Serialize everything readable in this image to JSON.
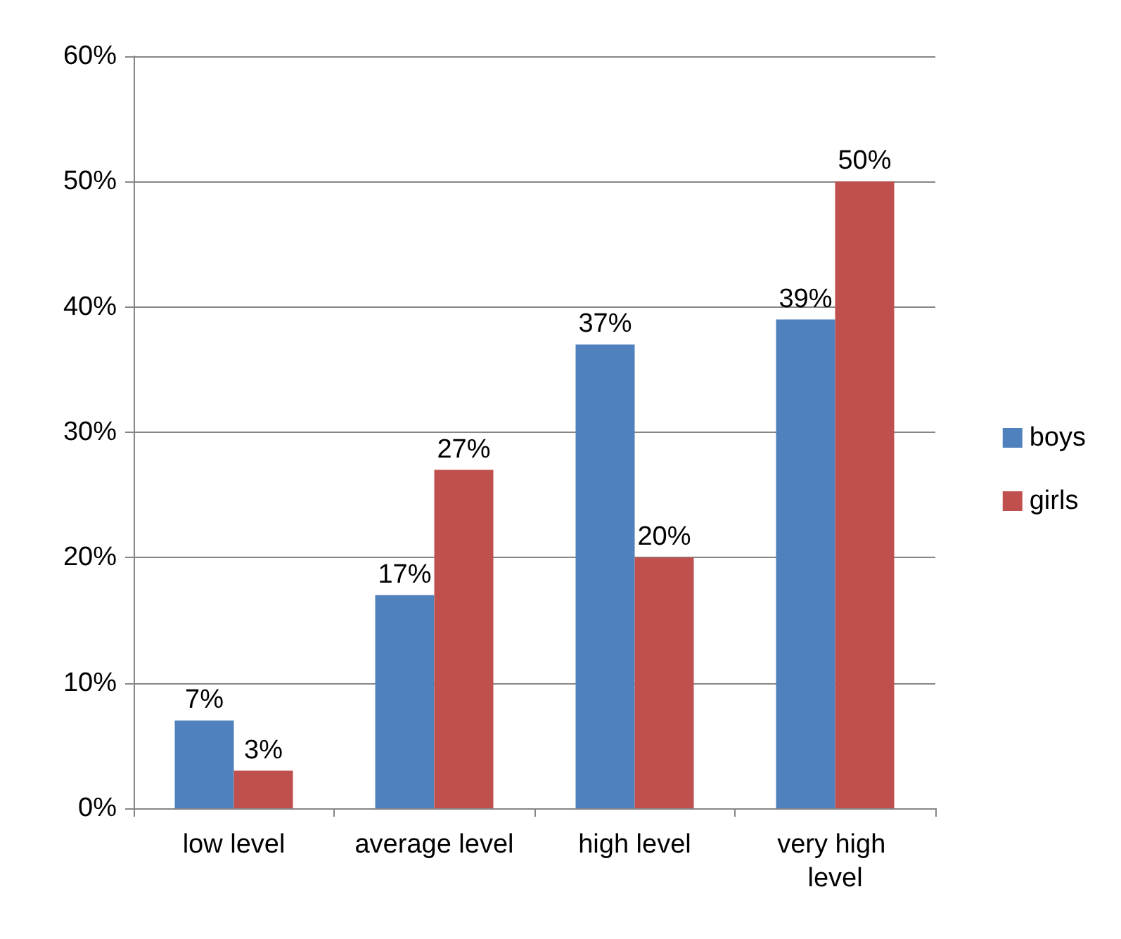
{
  "chart_data": {
    "type": "bar",
    "categories": [
      "low level",
      "average level",
      "high level",
      "very high level"
    ],
    "series": [
      {
        "name": "boys",
        "color": "#4f81bd",
        "values": [
          7,
          17,
          37,
          39
        ],
        "value_labels": [
          "7%",
          "17%",
          "37%",
          "39%"
        ]
      },
      {
        "name": "girls",
        "color": "#c0504d",
        "values": [
          3,
          27,
          20,
          50
        ],
        "value_labels": [
          "3%",
          "27%",
          "20%",
          "50%"
        ]
      }
    ],
    "ylim": [
      0,
      60
    ],
    "yticks": [
      {
        "value": 0,
        "label": "0%"
      },
      {
        "value": 10,
        "label": "10%"
      },
      {
        "value": 20,
        "label": "20%"
      },
      {
        "value": 30,
        "label": "30%"
      },
      {
        "value": 40,
        "label": "40%"
      },
      {
        "value": 50,
        "label": "50%"
      },
      {
        "value": 60,
        "label": "60%"
      }
    ],
    "grid": "y",
    "legend": "right"
  }
}
